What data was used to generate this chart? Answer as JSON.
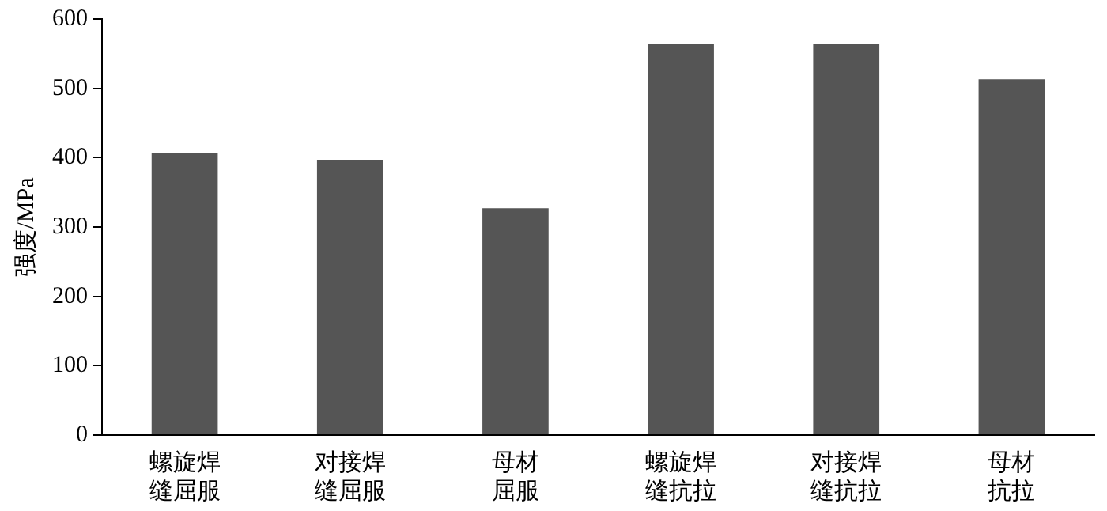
{
  "chart_data": {
    "type": "bar",
    "ylabel": "强度/MPa",
    "categories": [
      "螺旋焊缝屈服",
      "对接焊缝屈服",
      "母材屈服",
      "螺旋焊缝抗拉",
      "对接焊缝抗拉",
      "母材抗拉"
    ],
    "values": [
      406,
      397,
      327,
      564,
      564,
      513
    ],
    "color": "#555555",
    "ylim": [
      0,
      600
    ],
    "yticks": [
      0,
      100,
      200,
      300,
      400,
      500,
      600
    ],
    "grid": false,
    "legend": false
  }
}
